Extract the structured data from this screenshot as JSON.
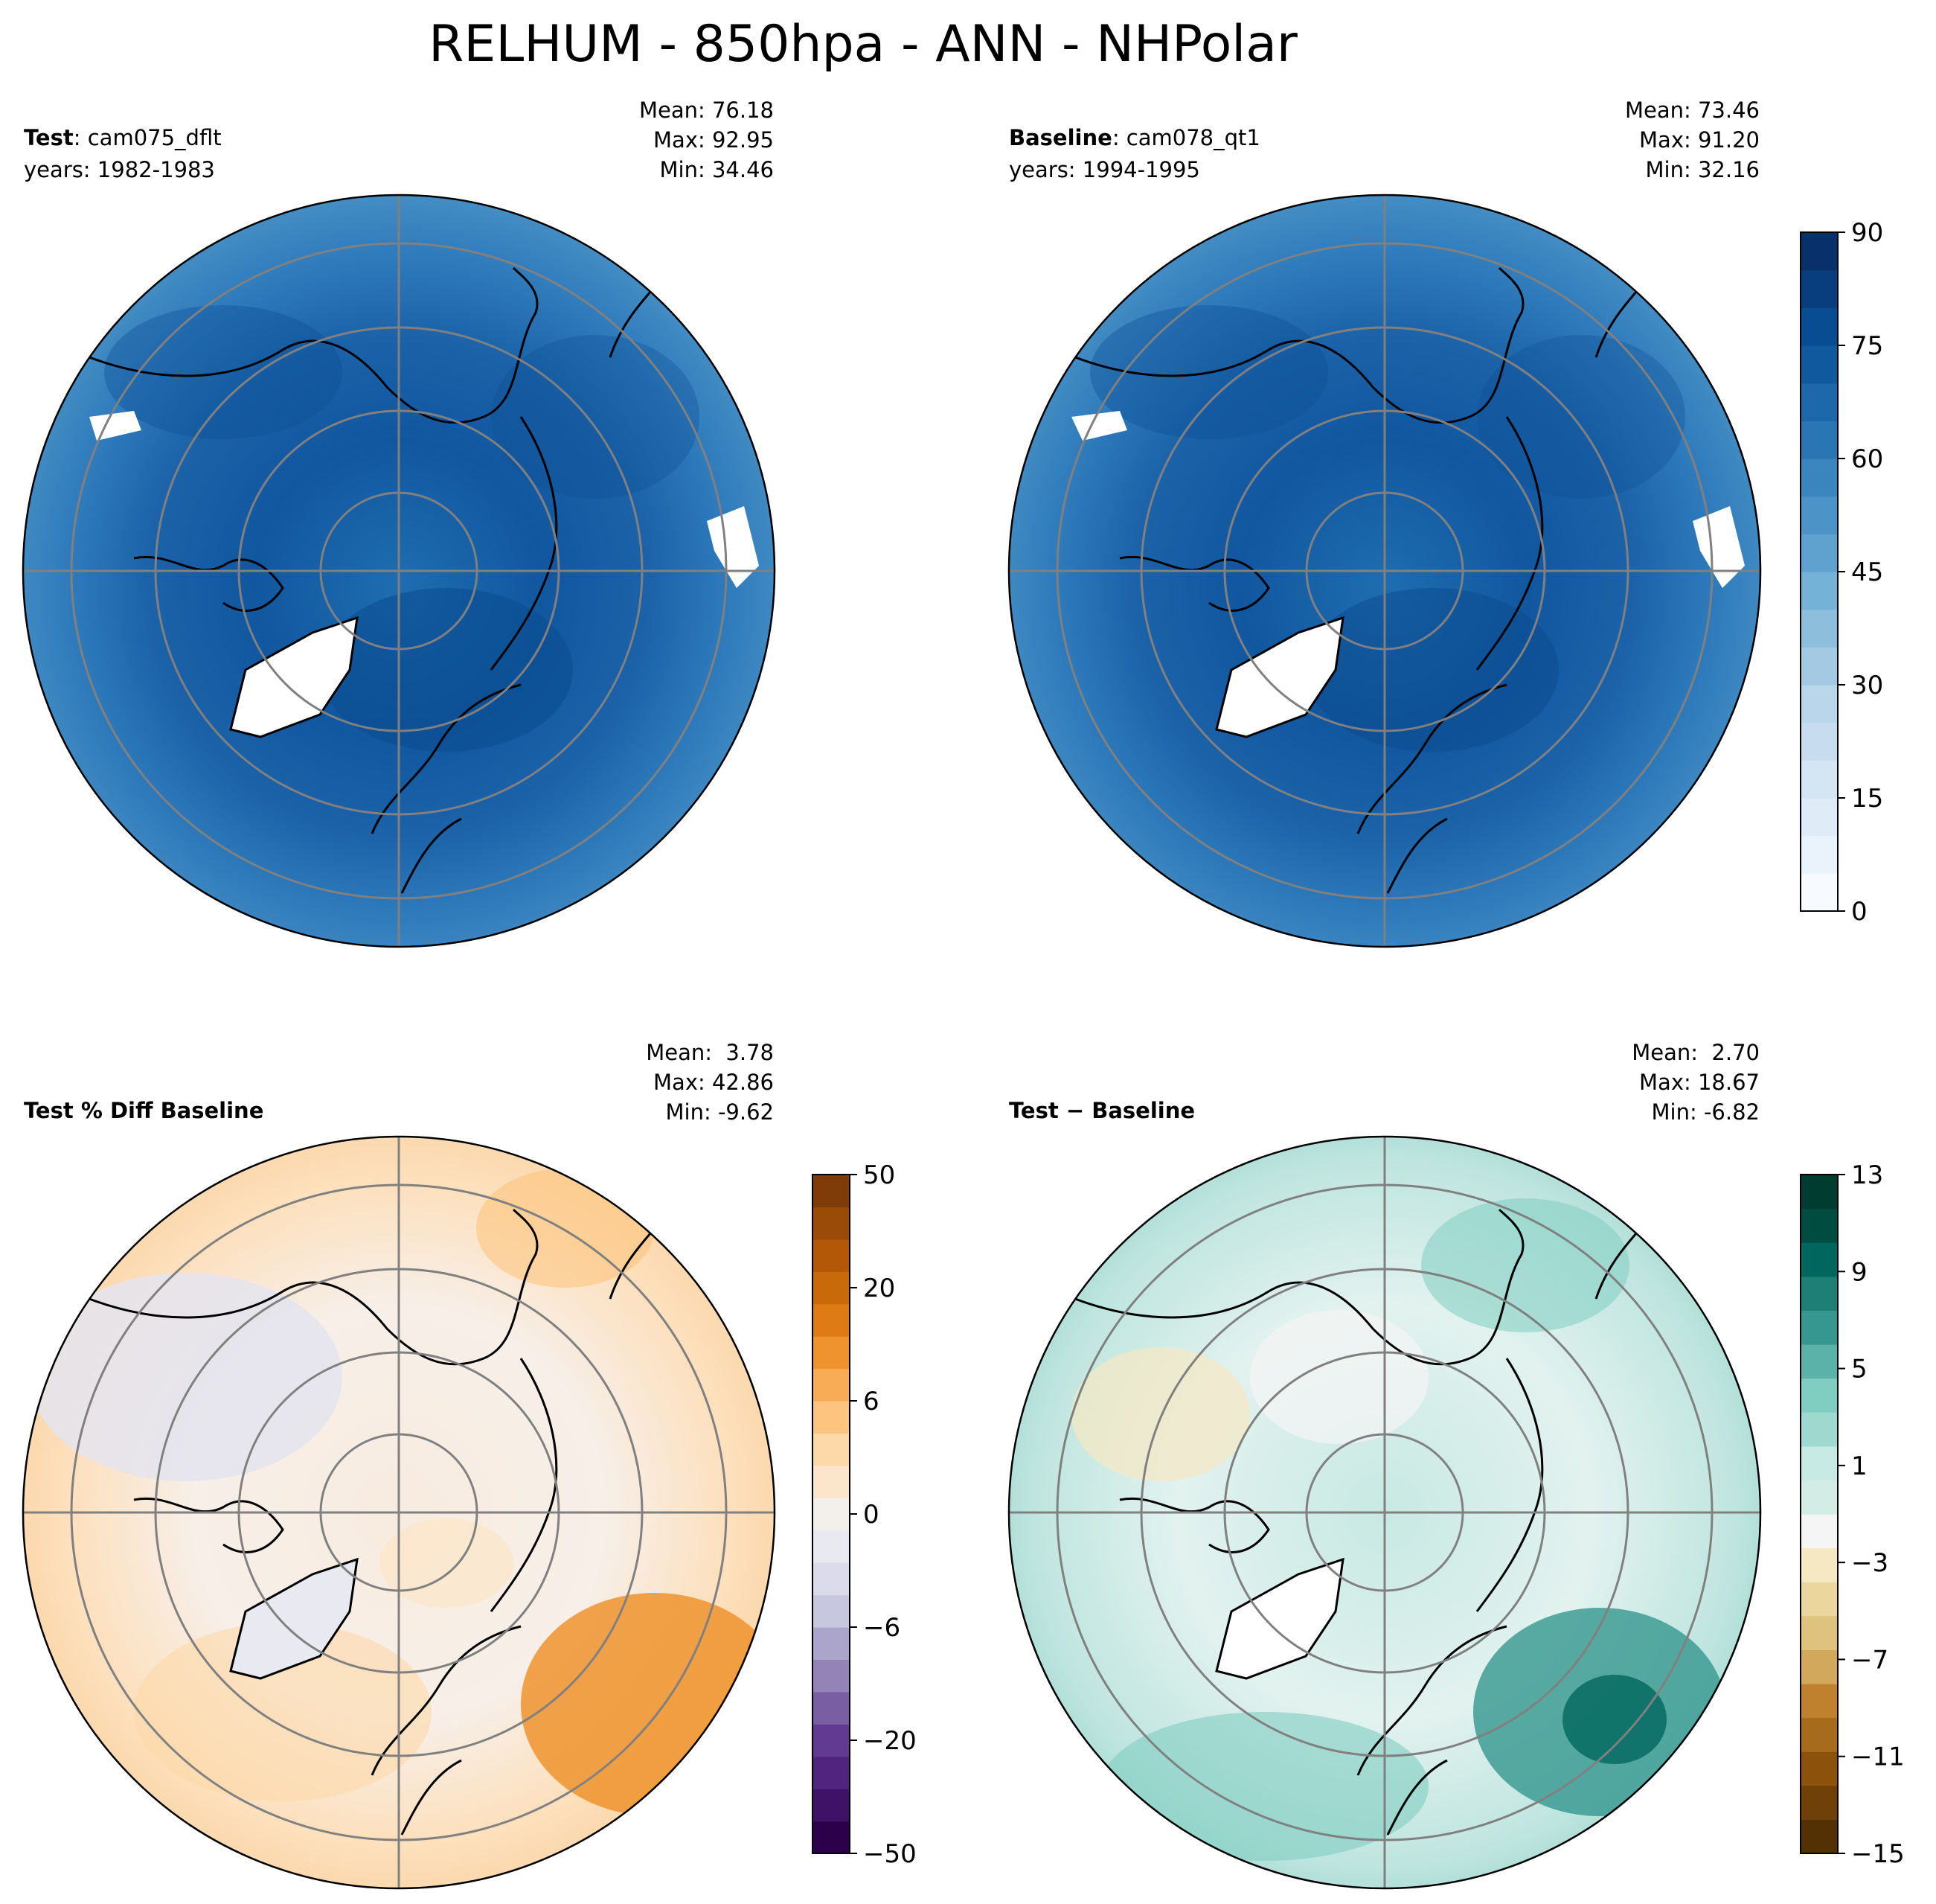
{
  "figure": {
    "title": "RELHUM - 850hpa - ANN - NHPolar"
  },
  "panels": {
    "test": {
      "label_bold": "Test",
      "label_rest": ": cam075_dflt",
      "years": "years: 1982-1983",
      "mean": "Mean: 76.18",
      "max": "Max: 92.95",
      "min": "Min: 34.46"
    },
    "baseline": {
      "label_bold": "Baseline",
      "label_rest": ": cam078_qt1",
      "years": "years: 1994-1995",
      "mean": "Mean: 73.46",
      "max": "Max: 91.20",
      "min": "Min: 32.16"
    },
    "pctdiff": {
      "label": "Test % Diff Baseline",
      "mean": "Mean:  3.78",
      "max": "Max: 42.86",
      "min": "Min: -9.62"
    },
    "diff": {
      "label": "Test − Baseline",
      "mean": "Mean:  2.70",
      "max": "Max: 18.67",
      "min": "Min: -6.82"
    }
  },
  "colorbars": {
    "relhum": {
      "ticks": [
        "0",
        "15",
        "30",
        "45",
        "60",
        "75",
        "90"
      ],
      "colors": [
        "#f7fbff",
        "#eaf3fb",
        "#dfecf7",
        "#d4e5f4",
        "#c8dcf0",
        "#bad6eb",
        "#a4cae3",
        "#8dbfdd",
        "#74b2d8",
        "#5fa2cf",
        "#4c94c8",
        "#3a85be",
        "#2a76b4",
        "#1c68aa",
        "#11599f",
        "#084c92",
        "#083e7e",
        "#08306b"
      ]
    },
    "pctdiff": {
      "ticks": [
        "−50",
        "−20",
        "−6",
        "0",
        "6",
        "20",
        "50"
      ],
      "colors": [
        "#2d004b",
        "#3f1267",
        "#51257f",
        "#633a91",
        "#7a5ea3",
        "#9383b6",
        "#aca5cb",
        "#c7c7e0",
        "#dbdbeb",
        "#e9e9f1",
        "#f3efea",
        "#fbe6cb",
        "#fdd8a9",
        "#fdc47f",
        "#f8ac55",
        "#ee932e",
        "#df7b15",
        "#c96a0a",
        "#b35806",
        "#9a4b07",
        "#7f3b08"
      ]
    },
    "diff": {
      "ticks": [
        "−15",
        "−11",
        "−7",
        "−3",
        "1",
        "5",
        "9",
        "13"
      ],
      "colors": [
        "#543005",
        "#6f4008",
        "#8c510a",
        "#a66b1d",
        "#bf812d",
        "#d2a95c",
        "#dfc27d",
        "#ebd79e",
        "#f6e8c3",
        "#f5f5f5",
        "#d3ece6",
        "#c7eae5",
        "#9fd8cf",
        "#80cdc1",
        "#5ab2a8",
        "#35978f",
        "#1d7f76",
        "#01665e",
        "#004c40",
        "#003c30"
      ]
    }
  }
}
